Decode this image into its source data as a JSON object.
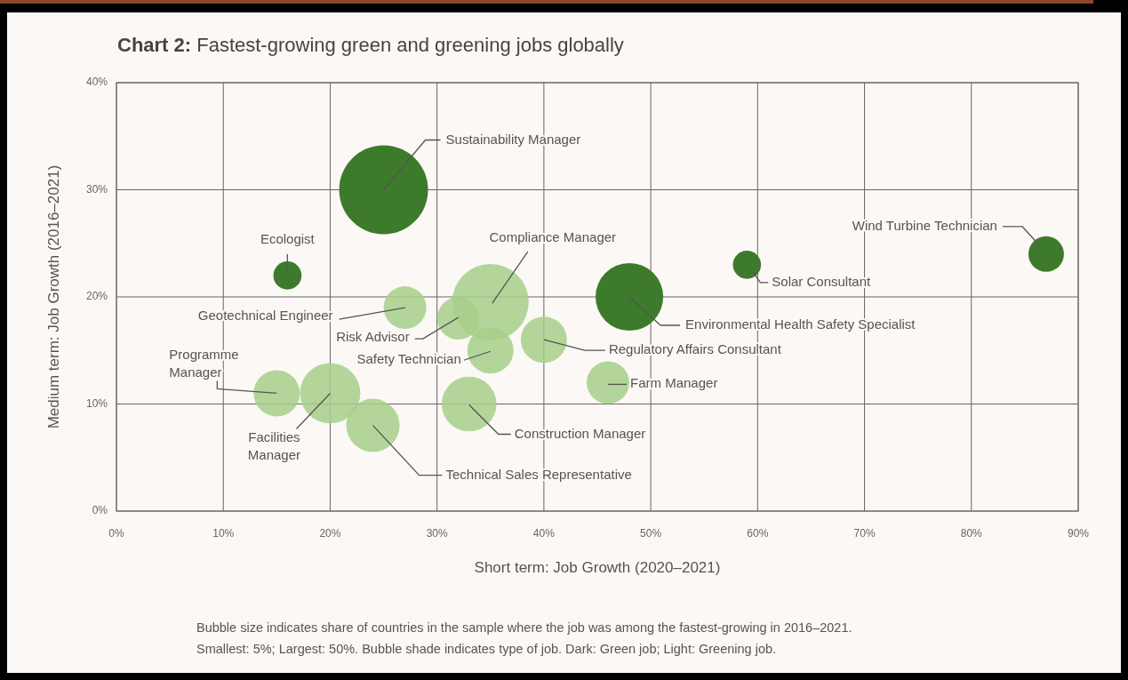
{
  "chart_data": {
    "type": "bubble",
    "title": "Chart 2: Fastest-growing green and greening jobs globally",
    "xlabel": "Short term: Job Growth (2020–2021)",
    "ylabel": "Medium term: Job Growth (2016–2021)",
    "xlim": [
      0,
      90
    ],
    "ylim": [
      0,
      40
    ],
    "xticks": [
      {
        "value": 0,
        "label": "0%"
      },
      {
        "value": 10,
        "label": "10%"
      },
      {
        "value": 20,
        "label": "20%"
      },
      {
        "value": 30,
        "label": "30%"
      },
      {
        "value": 40,
        "label": "40%"
      },
      {
        "value": 50,
        "label": "50%"
      },
      {
        "value": 60,
        "label": "60%"
      },
      {
        "value": 70,
        "label": "70%"
      },
      {
        "value": 80,
        "label": "80%"
      },
      {
        "value": 90,
        "label": "90%"
      }
    ],
    "yticks": [
      {
        "value": 0,
        "label": "0%"
      },
      {
        "value": 10,
        "label": "10%"
      },
      {
        "value": 20,
        "label": "20%"
      },
      {
        "value": 30,
        "label": "30%"
      },
      {
        "value": 40,
        "label": "40%"
      }
    ],
    "grid": true,
    "series": [
      {
        "color": "#3e7a2c",
        "x": [
          25,
          16,
          48,
          59,
          87
        ],
        "values": [
          30,
          22,
          20,
          23,
          24
        ],
        "sizes": [
          1,
          0.1,
          0.58,
          0.1,
          0.16
        ]
      },
      {
        "color": "#a6cf8a",
        "x": [
          35,
          27,
          32,
          35,
          40,
          46,
          15,
          20,
          24,
          33
        ],
        "values": [
          19.5,
          19,
          18,
          15,
          16,
          12,
          11,
          11,
          8,
          10
        ],
        "sizes": [
          0.74,
          0.23,
          0.23,
          0.27,
          0.27,
          0.23,
          0.27,
          0.46,
          0.36,
          0.38
        ]
      }
    ],
    "annotations": [
      {
        "text": "Sustainability Manager",
        "x": 25,
        "y": 30
      },
      {
        "text": "Ecologist",
        "x": 16,
        "y": 22
      },
      {
        "text": "Environmental Health Safety Specialist",
        "x": 48,
        "y": 20
      },
      {
        "text": "Solar Consultant",
        "x": 59,
        "y": 23
      },
      {
        "text": "Wind Turbine Technician",
        "x": 87,
        "y": 24
      },
      {
        "text": "Compliance Manager",
        "x": 35,
        "y": 19.5
      },
      {
        "text": "Geotechnical Engineer",
        "x": 27,
        "y": 19
      },
      {
        "text": "Risk Advisor",
        "x": 32,
        "y": 18
      },
      {
        "text": "Safety Technician",
        "x": 35,
        "y": 15
      },
      {
        "text": "Regulatory Affairs Consultant",
        "x": 40,
        "y": 16
      },
      {
        "text": "Farm Manager",
        "x": 46,
        "y": 12
      },
      {
        "text": "Programme Manager",
        "x": 15,
        "y": 11
      },
      {
        "text": "Facilities Manager",
        "x": 20,
        "y": 11
      },
      {
        "text": "Technical Sales Representative",
        "x": 24,
        "y": 8
      },
      {
        "text": "Construction Manager",
        "x": 33,
        "y": 10
      },
      "Bubble size indicates share of countries in the sample where the job was among the fastest-growing in 2016–2021.",
      "Smallest: 5%; Largest: 50%. Bubble shade indicates type of job. Dark: Green job; Light: Greening job."
    ]
  }
}
